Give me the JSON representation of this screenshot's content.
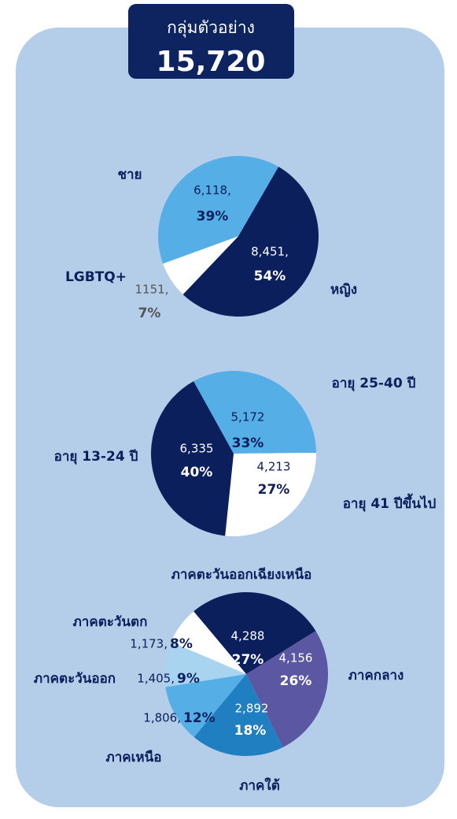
{
  "header": {
    "title": "กลุ่มตัวอย่าง",
    "total": "15,720"
  },
  "chart_data": [
    {
      "type": "pie",
      "categories": [
        "ชาย",
        "หญิง",
        "LGBTQ+"
      ],
      "values": [
        6118,
        8451,
        1151
      ],
      "value_labels": [
        "6,118,",
        "8,451,",
        "1151,"
      ],
      "percentages": [
        39,
        54,
        7
      ],
      "percentage_labels": [
        "39%",
        "54%",
        "7%"
      ],
      "colors": [
        "#56aee6",
        "#0b1f5c",
        "#ffffff"
      ]
    },
    {
      "type": "pie",
      "categories": [
        "อายุ 25-40 ปี",
        "อายุ 41 ปีขึ้นไป",
        "อายุ 13-24 ปี"
      ],
      "values": [
        5172,
        4213,
        6335
      ],
      "value_labels": [
        "5,172",
        "4,213",
        "6,335"
      ],
      "percentages": [
        33,
        27,
        40
      ],
      "percentage_labels": [
        "33%",
        "27%",
        "40%"
      ],
      "colors": [
        "#56aee6",
        "#ffffff",
        "#0b1f5c"
      ]
    },
    {
      "type": "pie",
      "categories": [
        "ภาคตะวันออกเฉียงเหนือ",
        "ภาคกลาง",
        "ภาคใต้",
        "ภาคเหนือ",
        "ภาคตะวันออก",
        "ภาคตะวันตก"
      ],
      "values": [
        4288,
        4156,
        2892,
        1806,
        1405,
        1173
      ],
      "value_labels": [
        "4,288",
        "4,156",
        "2,892",
        "1,806,",
        "1,405,",
        "1,173,"
      ],
      "percentages": [
        27,
        26,
        18,
        12,
        9,
        8
      ],
      "percentage_labels": [
        "27%",
        "26%",
        "18%",
        "12%",
        "9%",
        "8%"
      ],
      "colors": [
        "#0b1f5c",
        "#5b57a2",
        "#1f7fc0",
        "#56aee6",
        "#a9d4f0",
        "#ffffff"
      ]
    }
  ]
}
